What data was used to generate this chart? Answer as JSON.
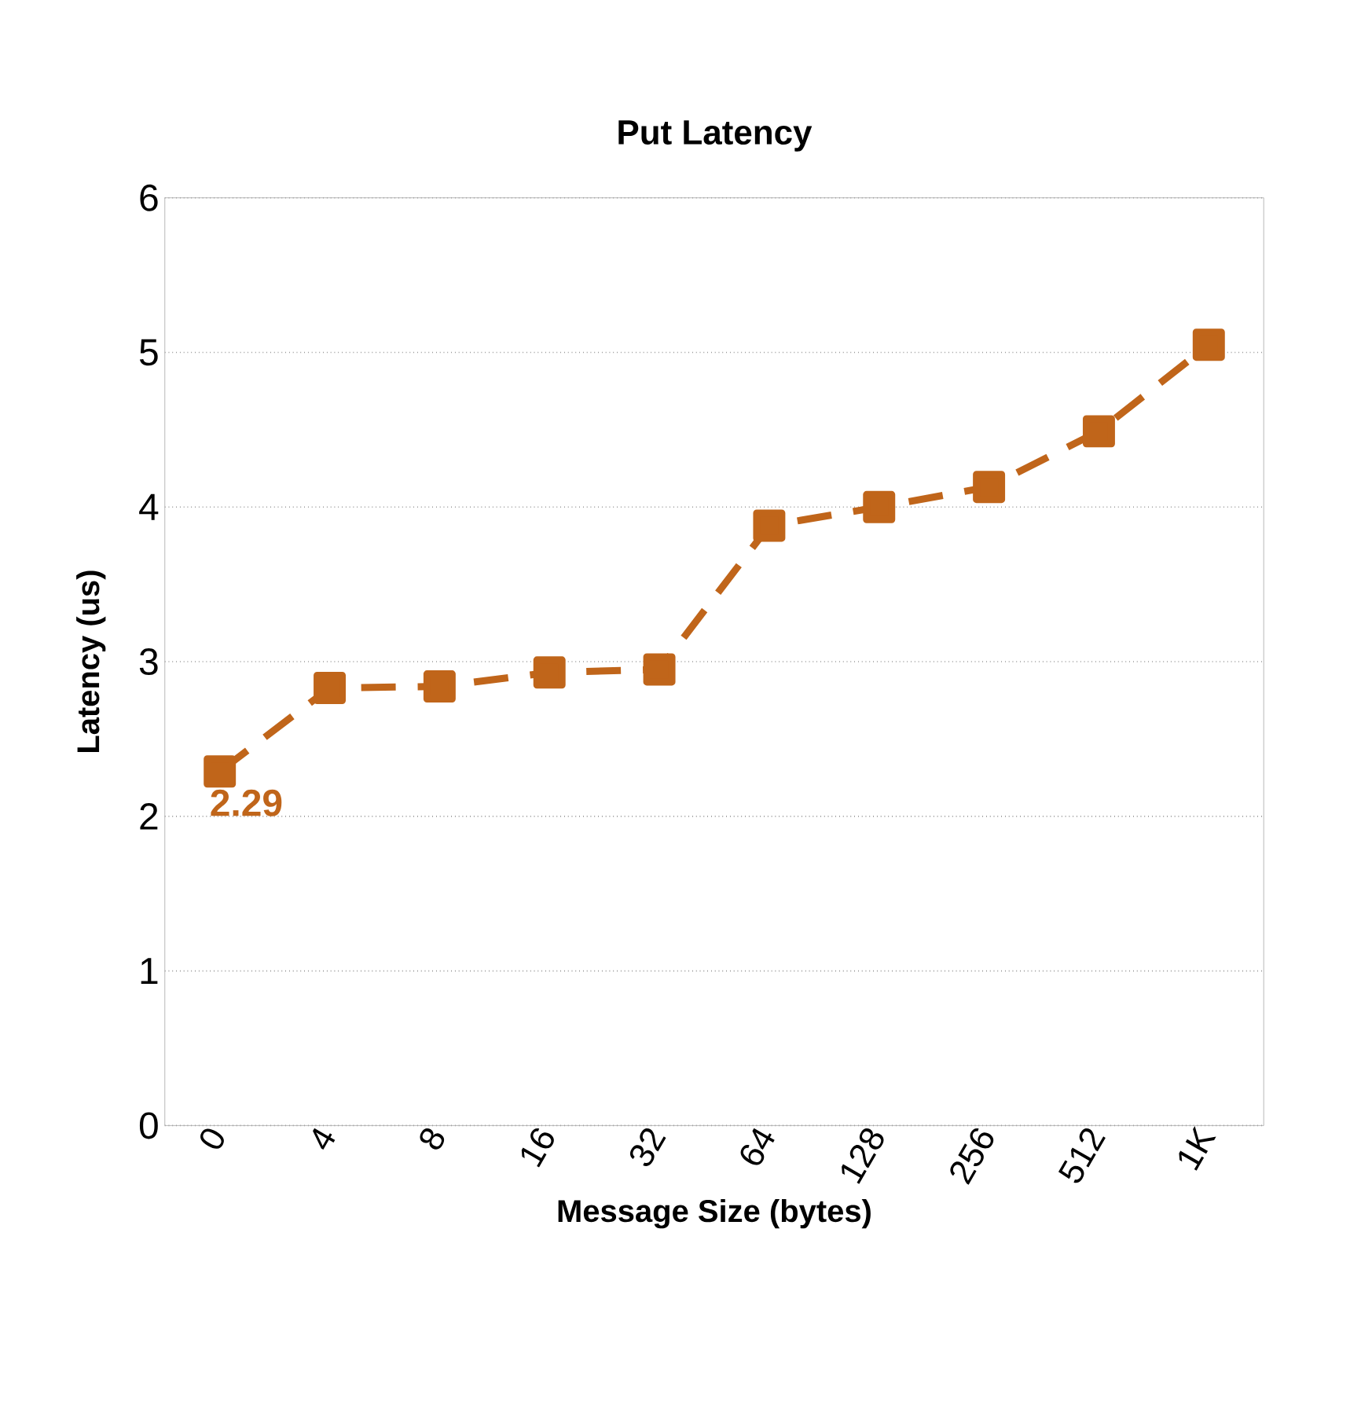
{
  "chart_data": {
    "type": "line",
    "title": "Put Latency",
    "xlabel": "Message Size (bytes)",
    "ylabel": "Latency (us)",
    "categories": [
      "0",
      "4",
      "8",
      "16",
      "32",
      "64",
      "128",
      "256",
      "512",
      "1K"
    ],
    "series": [
      {
        "color": "#c0651a",
        "values": [
          2.29,
          2.83,
          2.84,
          2.93,
          2.95,
          3.88,
          4.0,
          4.13,
          4.49,
          5.05
        ],
        "value_labels": [
          "2.29",
          null,
          null,
          null,
          null,
          null,
          null,
          null,
          null,
          null
        ]
      }
    ],
    "ylim": [
      0,
      6
    ],
    "yticks": [
      0,
      1,
      2,
      3,
      4,
      5,
      6
    ],
    "grid": "y",
    "marker": "square",
    "line_style": "dashed"
  }
}
